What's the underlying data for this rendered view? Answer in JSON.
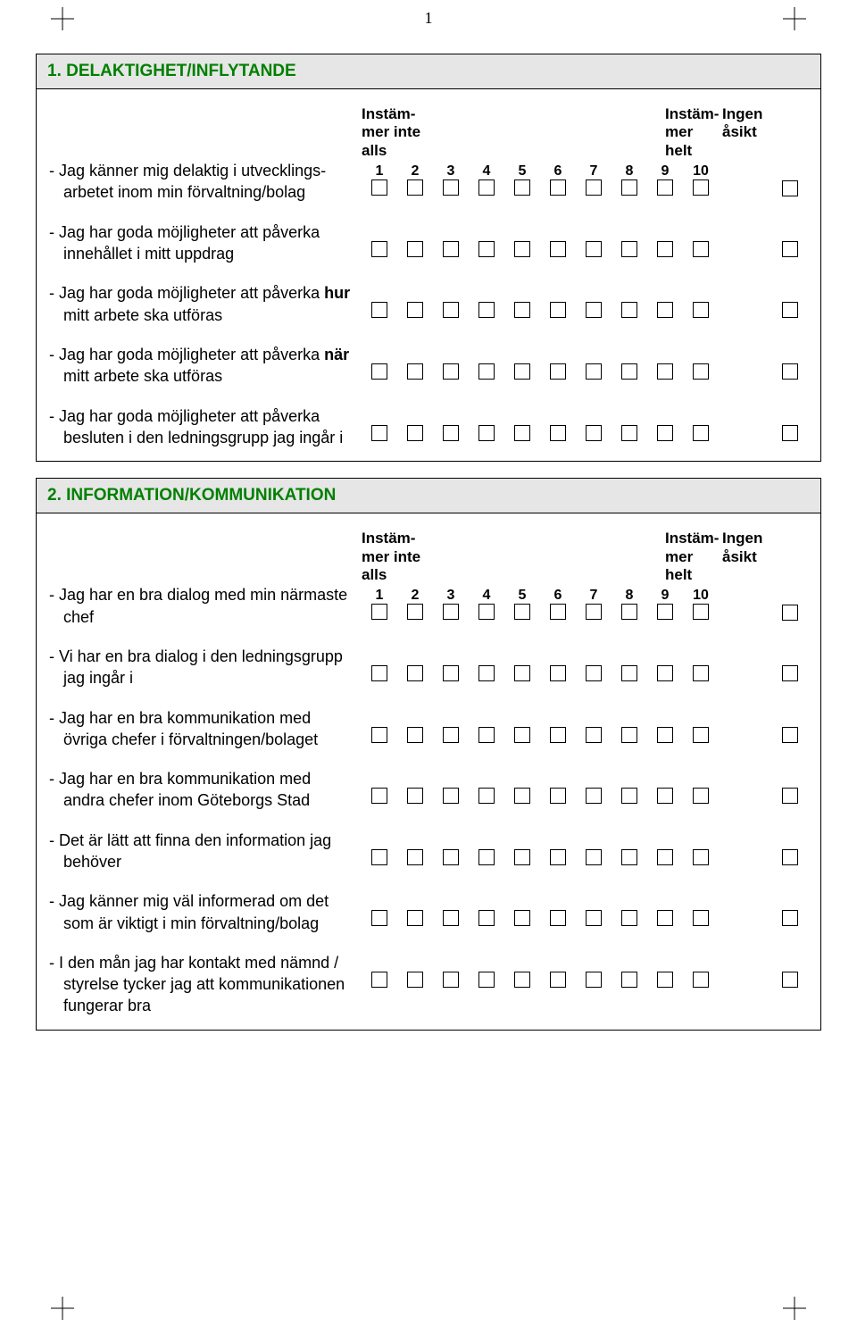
{
  "page_number": "1",
  "accent_color": "#008000",
  "colors": {
    "section_header_bg": "#e6e6e6",
    "border": "#000000",
    "text": "#000000",
    "background": "#ffffff"
  },
  "scale_header": {
    "low_label": "Instäm-mer inte alls",
    "high_label": "Instäm-mer helt",
    "no_opinion": "Ingen åsikt",
    "numbers": [
      "1",
      "2",
      "3",
      "4",
      "5",
      "6",
      "7",
      "8",
      "9",
      "10"
    ]
  },
  "sections": [
    {
      "title": "1. DELAKTIGHET/INFLYTANDE",
      "questions": [
        "- Jag känner mig delaktig i utvecklings-arbetet inom min förvaltning/bolag",
        "- Jag har goda möjligheter att påverka innehållet i mitt uppdrag",
        "- Jag har goda möjligheter att påverka hur mitt arbete ska utföras",
        "- Jag har goda möjligheter att påverka när mitt arbete ska utföras",
        "- Jag har goda möjligheter att påverka besluten i den ledningsgrupp jag ingår i"
      ],
      "bold_spans": {
        "2": "hur",
        "3": "när"
      }
    },
    {
      "title": "2. INFORMATION/KOMMUNIKATION",
      "questions": [
        "- Jag har en bra dialog med min närmaste chef",
        "- Vi har en bra dialog i den ledningsgrupp jag ingår i",
        "- Jag har en bra kommunikation med övriga chefer i förvaltningen/bolaget",
        "- Jag har en bra kommunikation med andra chefer inom Göteborgs Stad",
        "- Det är lätt att finna den information jag behöver",
        "- Jag känner mig väl informerad om det som är viktigt i min förvaltning/bolag",
        "- I den mån jag har kontakt med nämnd / styrelse tycker jag att kommunikationen fungerar bra"
      ],
      "bold_spans": {}
    }
  ]
}
